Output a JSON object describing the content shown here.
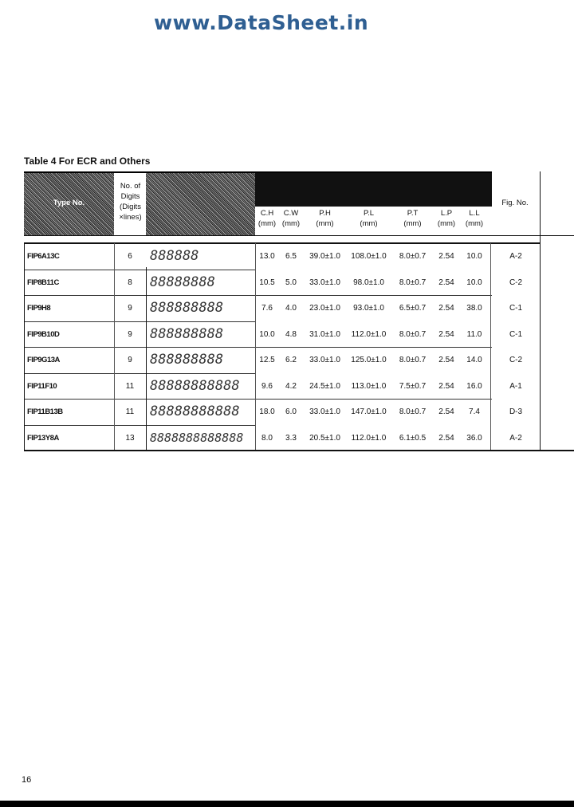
{
  "watermark": "www.DataSheet.in",
  "table_title": "Table 4 For ECR and Others",
  "headers": {
    "type": "Type No.",
    "digits": "No. of Digits (Digits ×lines)",
    "ch": "C.H",
    "cw": "C.W",
    "ph": "P.H",
    "pl": "P.L",
    "pt": "P.T",
    "lp": "L.P",
    "ll": "L.L",
    "unit": "(mm)",
    "fig": "Fig. No."
  },
  "rows": [
    {
      "type": "FIP6A13C",
      "digits": "6",
      "ch": "13.0",
      "cw": "6.5",
      "ph": "39.0±1.0",
      "pl": "108.0±1.0",
      "pt": "8.0±0.7",
      "lp": "2.54",
      "ll": "10.0",
      "fig": "A-2"
    },
    {
      "type": "FIP8B11C",
      "digits": "8",
      "ch": "10.5",
      "cw": "5.0",
      "ph": "33.0±1.0",
      "pl": "98.0±1.0",
      "pt": "8.0±0.7",
      "lp": "2.54",
      "ll": "10.0",
      "fig": "C-2"
    },
    {
      "type": "FIP9H8",
      "digits": "9",
      "ch": "7.6",
      "cw": "4.0",
      "ph": "23.0±1.0",
      "pl": "93.0±1.0",
      "pt": "6.5±0.7",
      "lp": "2.54",
      "ll": "38.0",
      "fig": "C-1"
    },
    {
      "type": "FIP9B10D",
      "digits": "9",
      "ch": "10.0",
      "cw": "4.8",
      "ph": "31.0±1.0",
      "pl": "112.0±1.0",
      "pt": "8.0±0.7",
      "lp": "2.54",
      "ll": "11.0",
      "fig": "C-1"
    },
    {
      "type": "FIP9G13A",
      "digits": "9",
      "ch": "12.5",
      "cw": "6.2",
      "ph": "33.0±1.0",
      "pl": "125.0±1.0",
      "pt": "8.0±0.7",
      "lp": "2.54",
      "ll": "14.0",
      "fig": "C-2"
    },
    {
      "type": "FIP11F10",
      "digits": "11",
      "ch": "9.6",
      "cw": "4.2",
      "ph": "24.5±1.0",
      "pl": "113.0±1.0",
      "pt": "7.5±0.7",
      "lp": "2.54",
      "ll": "16.0",
      "fig": "A-1"
    },
    {
      "type": "FIP11B13B",
      "digits": "11",
      "ch": "18.0",
      "cw": "6.0",
      "ph": "33.0±1.0",
      "pl": "147.0±1.0",
      "pt": "8.0±0.7",
      "lp": "2.54",
      "ll": "7.4",
      "fig": "D-3"
    },
    {
      "type": "FIP13Y8A",
      "digits": "13",
      "ch": "8.0",
      "cw": "3.3",
      "ph": "20.5±1.0",
      "pl": "112.0±1.0",
      "pt": "6.1±0.5",
      "lp": "2.54",
      "ll": "36.0",
      "fig": "A-2"
    }
  ],
  "page_number": "16"
}
